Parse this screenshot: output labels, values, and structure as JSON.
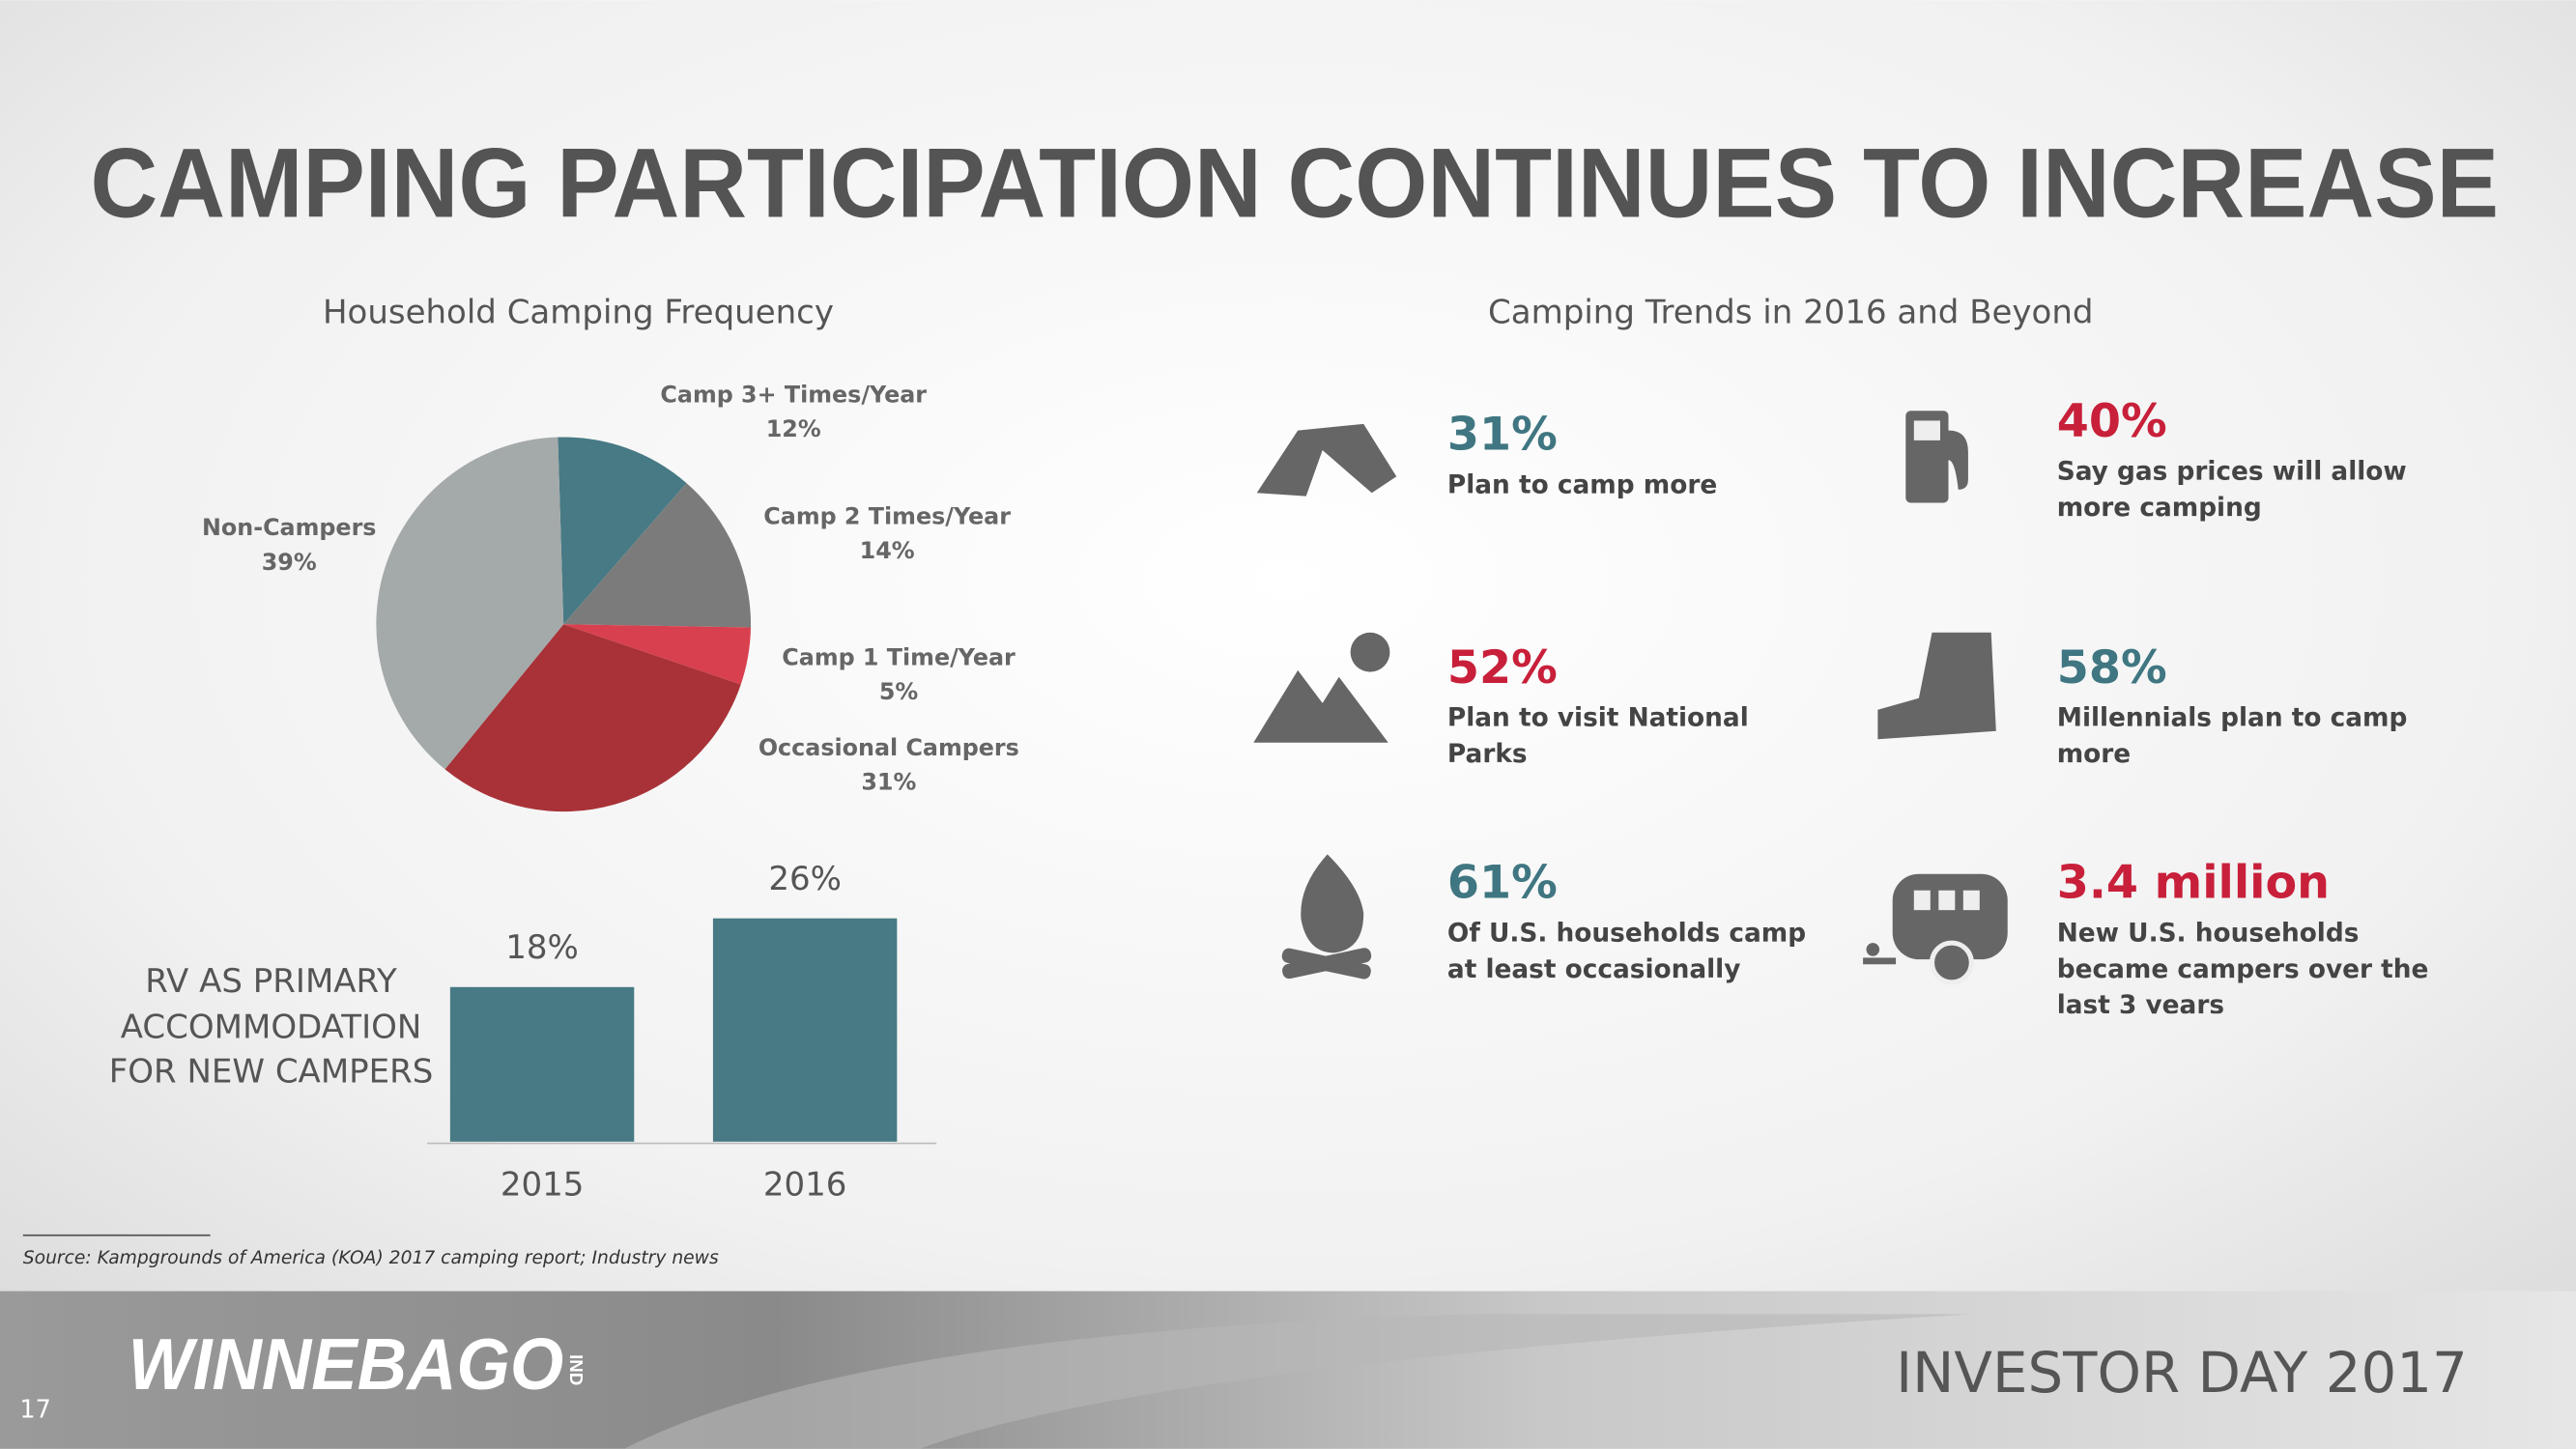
{
  "title": "CAMPING PARTICIPATION CONTINUES TO INCREASE",
  "chart_data": [
    {
      "type": "pie",
      "title": "Household Camping Frequency",
      "categories": [
        "Camp 3+ Times/Year",
        "Camp 2 Times/Year",
        "Camp 1 Time/Year",
        "Occasional Campers",
        "Non-Campers"
      ],
      "values": [
        12,
        14,
        5,
        31,
        39
      ],
      "value_labels": [
        "12%",
        "14%",
        "5%",
        "31%",
        "39%"
      ],
      "colors": [
        "#477a84",
        "#7b7b7b",
        "#d9404f",
        "#a83238",
        "#a4a9aa"
      ]
    },
    {
      "type": "bar",
      "label": "RV AS PRIMARY ACCOMMODATION FOR NEW CAMPERS",
      "categories": [
        "2015",
        "2016"
      ],
      "values": [
        18,
        26
      ],
      "value_labels": [
        "18%",
        "26%"
      ],
      "color": "#477a84"
    }
  ],
  "trends": {
    "title": "Camping Trends in 2016 and Beyond",
    "items": [
      {
        "stat": "31%",
        "text": "Plan to camp more",
        "color": "#3f7681"
      },
      {
        "stat": "40%",
        "text": "Say gas prices will allow more camping",
        "color": "#c8203a"
      },
      {
        "stat": "52%",
        "text": "Plan to visit National Parks",
        "color": "#c8203a"
      },
      {
        "stat": "58%",
        "text": "Millennials plan to camp more",
        "color": "#3f7681"
      },
      {
        "stat": "61%",
        "text": "Of U.S. households camp at least occasionally",
        "color": "#3f7681"
      },
      {
        "stat": "3.4 million",
        "text": "New U.S. households became campers over the last 3 years",
        "color": "#c8203a"
      }
    ]
  },
  "source": "Source: Kampgrounds of America (KOA) 2017 camping report; Industry news",
  "footer": {
    "logo": "WINNEBAGO",
    "logo_suffix": "IND",
    "event": "INVESTOR DAY 2017",
    "page": "17"
  }
}
